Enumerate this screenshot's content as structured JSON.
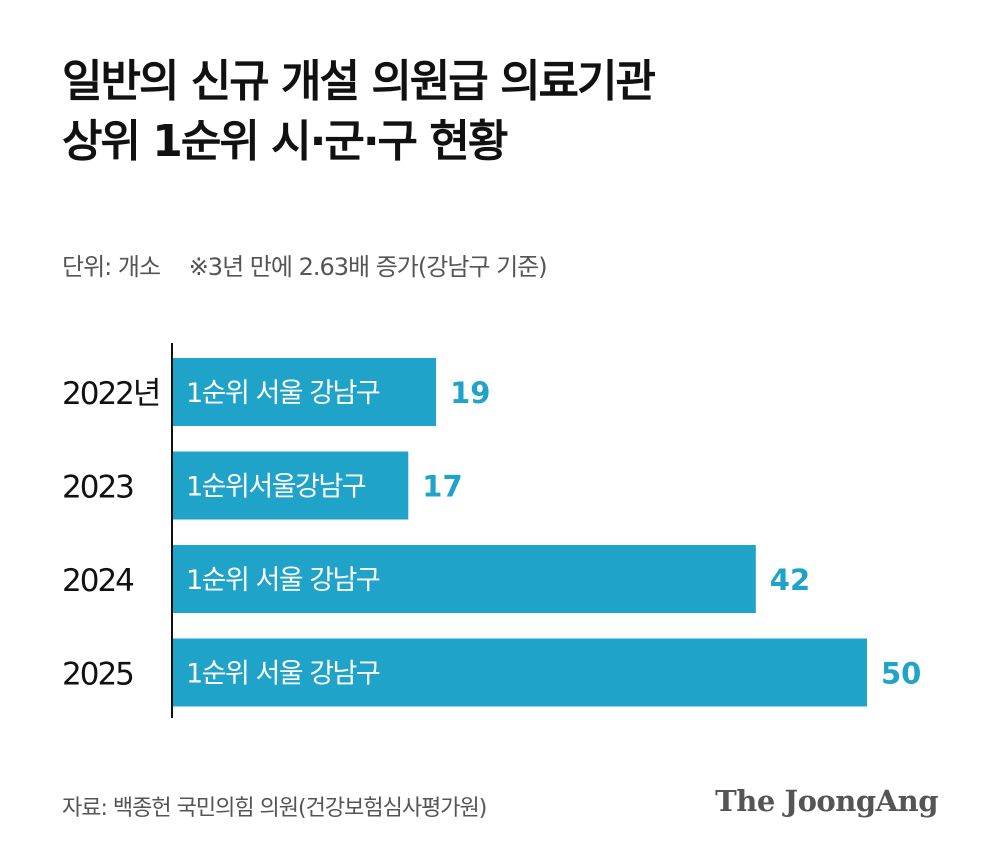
{
  "title": {
    "line1": "일반의 신규 개설 의원급 의료기관",
    "line2": "상위 1순위 시·군·구 현황"
  },
  "subtitle": {
    "unit": "단위: 개소",
    "note": "※3년 만에 2.63배 증가(강남구 기준)"
  },
  "source": "자료: 백종헌 국민의힘 의원(건강보험심사평가원)",
  "brand": "The JoongAng",
  "colors": {
    "bar": "#1fa3c9",
    "value_label": "#1fa3c9",
    "bar_label": "#ffffff",
    "axis": "#111111"
  },
  "chart_data": {
    "type": "bar",
    "orientation": "horizontal",
    "categories": [
      "2022년",
      "2023",
      "2024",
      "2025"
    ],
    "values": [
      19,
      17,
      42,
      50
    ],
    "bar_labels": [
      "1순위 서울 강남구",
      "1순위서울강남구",
      "1순위 서울 강남구",
      "1순위 서울 강남구"
    ],
    "grid": false
  }
}
